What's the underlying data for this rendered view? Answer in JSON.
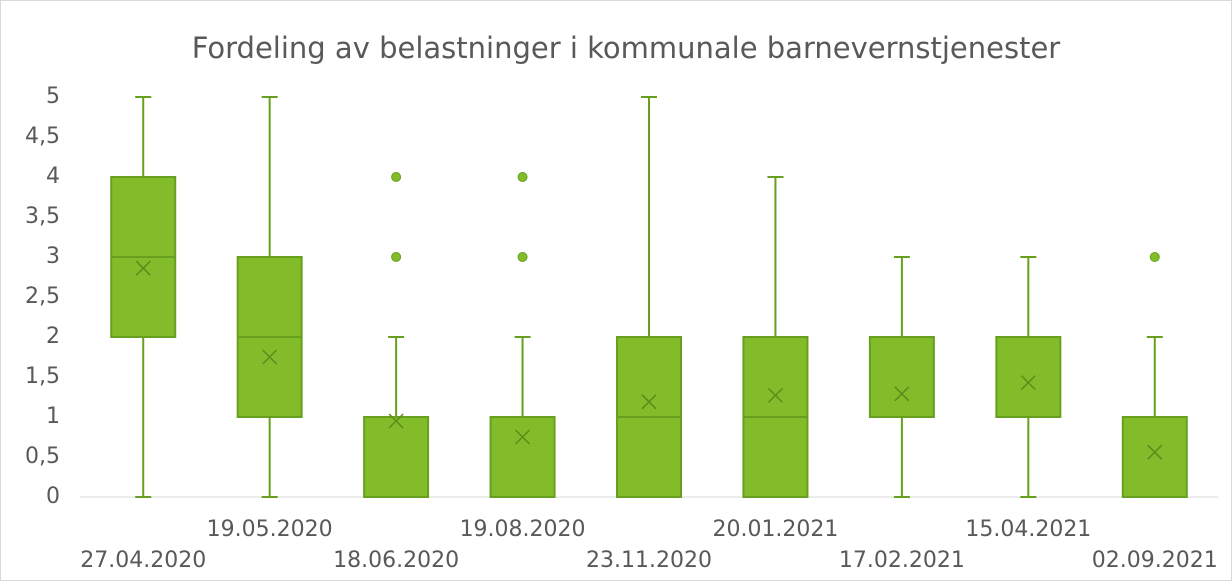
{
  "chart_data": {
    "type": "box",
    "title": "Fordeling av belastninger i kommunale barnevernstjenester",
    "categories": [
      "27.04.2020",
      "19.05.2020",
      "18.06.2020",
      "19.08.2020",
      "23.11.2020",
      "20.01.2021",
      "17.02.2021",
      "15.04.2021",
      "02.09.2021"
    ],
    "color": "#82bc2a",
    "edge_color": "#67a01e",
    "boxes": [
      {
        "min": 0,
        "q1": 2,
        "median": 3,
        "q3": 4,
        "max": 5,
        "mean": 2.86,
        "outliers": []
      },
      {
        "min": 0,
        "q1": 1,
        "median": 2,
        "q3": 3,
        "max": 5,
        "mean": 1.75,
        "outliers": []
      },
      {
        "min": 0,
        "q1": 0,
        "median": 1,
        "q3": 1,
        "max": 2,
        "mean": 0.95,
        "outliers": [
          3,
          4
        ]
      },
      {
        "min": 0,
        "q1": 0,
        "median": 1,
        "q3": 1,
        "max": 2,
        "mean": 0.75,
        "outliers": [
          3,
          4
        ]
      },
      {
        "min": 0,
        "q1": 0,
        "median": 1,
        "q3": 2,
        "max": 5,
        "mean": 1.19,
        "outliers": []
      },
      {
        "min": 0,
        "q1": 0,
        "median": 1,
        "q3": 2,
        "max": 4,
        "mean": 1.27,
        "outliers": []
      },
      {
        "min": 0,
        "q1": 1,
        "median": 1,
        "q3": 2,
        "max": 3,
        "mean": 1.29,
        "outliers": []
      },
      {
        "min": 0,
        "q1": 1,
        "median": 1,
        "q3": 2,
        "max": 3,
        "mean": 1.43,
        "outliers": []
      },
      {
        "min": 0,
        "q1": 0,
        "median": 1,
        "q3": 1,
        "max": 2,
        "mean": 0.56,
        "outliers": [
          3
        ]
      }
    ],
    "ylim": [
      0,
      5
    ],
    "yticks": [
      0,
      {
        "value": 0.5,
        "label": "0,5"
      },
      1,
      {
        "value": 1.5,
        "label": "1,5"
      },
      2,
      {
        "value": 2.5,
        "label": "2,5"
      },
      3,
      {
        "value": 3.5,
        "label": "3,5"
      },
      4,
      {
        "value": 4.5,
        "label": "4,5"
      },
      5
    ],
    "grid": false
  }
}
